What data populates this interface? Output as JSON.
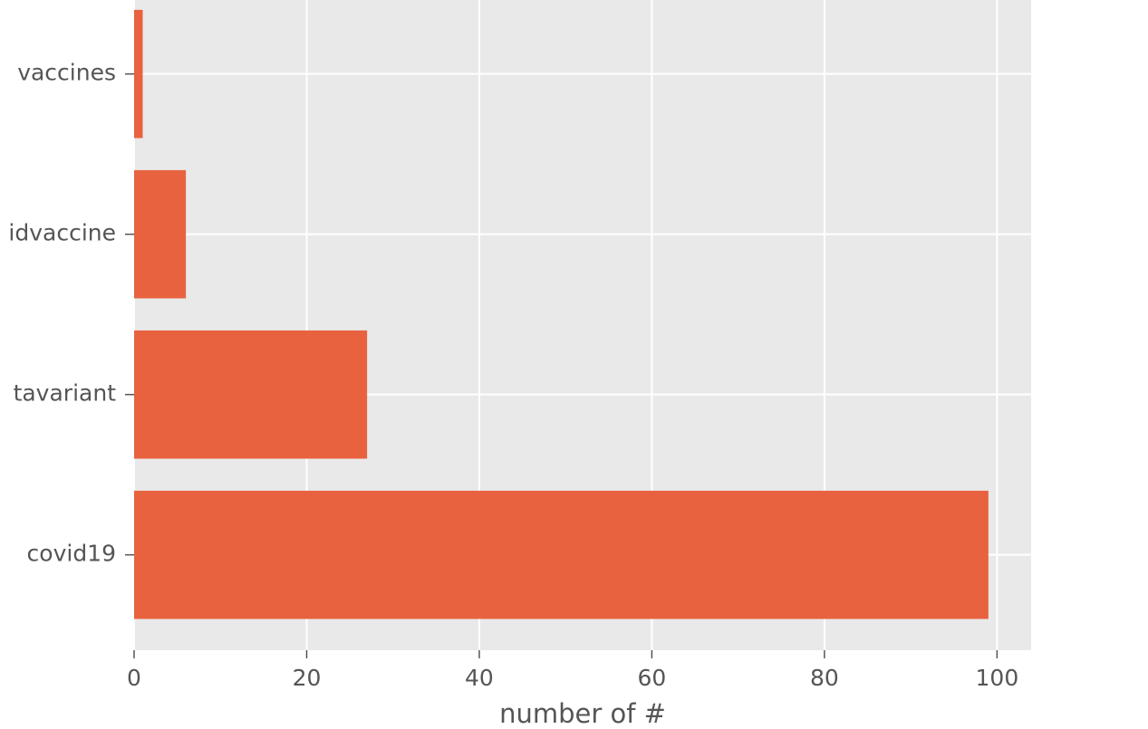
{
  "chart_data": {
    "type": "barh",
    "categories": [
      "covid19",
      "tavariant",
      "idvaccine",
      "vaccines"
    ],
    "values": [
      99,
      27,
      6,
      1
    ],
    "color": "#e8623f",
    "xlabel": "number of #",
    "xlim": [
      0,
      103.95
    ],
    "xticks": [
      0,
      20,
      40,
      60,
      80,
      100
    ],
    "grid": true
  }
}
